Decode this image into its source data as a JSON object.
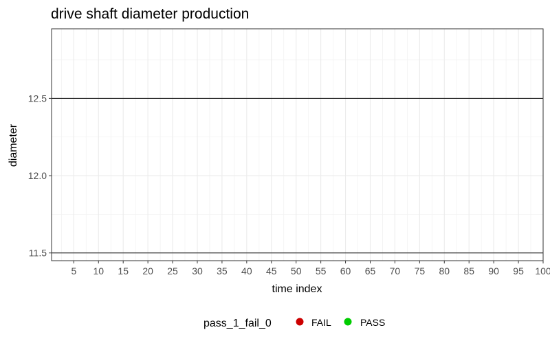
{
  "chart_data": {
    "type": "scatter",
    "title": "drive shaft diameter production",
    "xlabel": "time index",
    "ylabel": "diameter",
    "xlim": [
      0.5,
      100
    ],
    "ylim": [
      11.45,
      12.95
    ],
    "x_ticks": [
      5,
      10,
      15,
      20,
      25,
      30,
      35,
      40,
      45,
      50,
      55,
      60,
      65,
      70,
      75,
      80,
      85,
      90,
      95,
      100
    ],
    "y_ticks": [
      11.5,
      12.0,
      12.5
    ],
    "x_minor_step": 2.5,
    "y_minor_step": 0.25,
    "reference_lines": [
      11.5,
      12.5
    ],
    "grid": true,
    "legend": {
      "title": "pass_1_fail_0",
      "position": "bottom",
      "entries": [
        {
          "label": "FAIL",
          "color": "#cc0000"
        },
        {
          "label": "PASS",
          "color": "#00cc00"
        }
      ]
    },
    "series": []
  }
}
